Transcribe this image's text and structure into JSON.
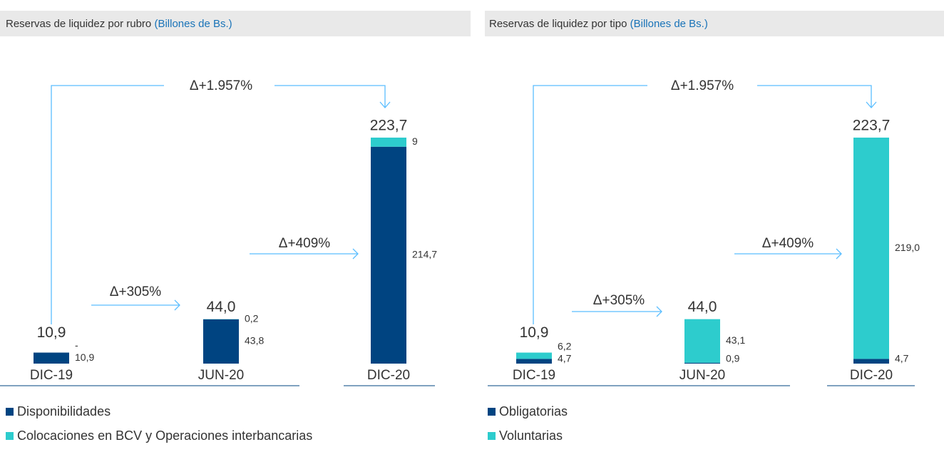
{
  "chart_data": [
    {
      "type": "bar",
      "stacked": true,
      "title": "Reservas de liquidez por rubro",
      "title_unit": "(Billones de Bs.)",
      "categories": [
        "DIC-19",
        "JUN-20",
        "DIC-20"
      ],
      "series": [
        {
          "name": "Disponibilidades",
          "color": "#004481",
          "values": [
            10.9,
            43.8,
            214.7
          ],
          "value_labels": [
            "10,9",
            "43,8",
            "214,7"
          ]
        },
        {
          "name": "Colocaciones en BCV y Operaciones interbancarias",
          "color": "#2dcccd",
          "values": [
            0,
            0.2,
            9
          ],
          "value_labels": [
            "-",
            "0,2",
            "9"
          ]
        }
      ],
      "totals": [
        10.9,
        44.0,
        223.7
      ],
      "total_labels": [
        "10,9",
        "44,0",
        "223,7"
      ],
      "annotations": [
        "Δ+1.957%",
        "Δ+305%",
        "Δ+409%"
      ]
    },
    {
      "type": "bar",
      "stacked": true,
      "title": "Reservas de liquidez por tipo",
      "title_unit": "(Billones de Bs.)",
      "categories": [
        "DIC-19",
        "JUN-20",
        "DIC-20"
      ],
      "series": [
        {
          "name": "Obligatorias",
          "color": "#004481",
          "values": [
            4.7,
            0.9,
            4.7
          ],
          "value_labels": [
            "4,7",
            "0,9",
            "4,7"
          ]
        },
        {
          "name": "Voluntarias",
          "color": "#2dcccd",
          "values": [
            6.2,
            43.1,
            219.0
          ],
          "value_labels": [
            "6,2",
            "43,1",
            "219,0"
          ]
        }
      ],
      "totals": [
        10.9,
        44.0,
        223.7
      ],
      "total_labels": [
        "10,9",
        "44,0",
        "223,7"
      ],
      "annotations": [
        "Δ+1.957%",
        "Δ+305%",
        "Δ+409%"
      ]
    }
  ]
}
